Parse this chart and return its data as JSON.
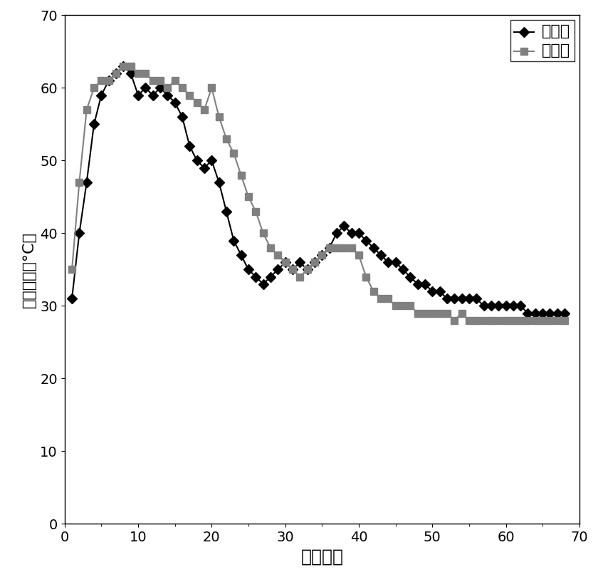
{
  "control_x": [
    1,
    2,
    3,
    4,
    5,
    6,
    7,
    8,
    9,
    10,
    11,
    12,
    13,
    14,
    15,
    16,
    17,
    18,
    19,
    20,
    21,
    22,
    23,
    24,
    25,
    26,
    27,
    28,
    29,
    30,
    31,
    32,
    33,
    34,
    35,
    36,
    37,
    38,
    39,
    40,
    41,
    42,
    43,
    44,
    45,
    46,
    47,
    48,
    49,
    50,
    51,
    52,
    53,
    54,
    55,
    56,
    57,
    58,
    59,
    60,
    61,
    62,
    63,
    64,
    65,
    66,
    67,
    68
  ],
  "control_y": [
    31,
    40,
    47,
    55,
    59,
    61,
    62,
    63,
    62,
    59,
    60,
    59,
    60,
    59,
    58,
    56,
    52,
    50,
    49,
    50,
    47,
    43,
    39,
    37,
    35,
    34,
    33,
    34,
    35,
    36,
    35,
    36,
    35,
    36,
    37,
    38,
    40,
    41,
    40,
    40,
    39,
    38,
    37,
    36,
    36,
    35,
    34,
    33,
    33,
    32,
    32,
    31,
    31,
    31,
    31,
    31,
    30,
    30,
    30,
    30,
    30,
    30,
    29,
    29,
    29,
    29,
    29,
    29
  ],
  "bacteria_x": [
    1,
    2,
    3,
    4,
    5,
    6,
    7,
    8,
    9,
    10,
    11,
    12,
    13,
    14,
    15,
    16,
    17,
    18,
    19,
    20,
    21,
    22,
    23,
    24,
    25,
    26,
    27,
    28,
    29,
    30,
    31,
    32,
    33,
    34,
    35,
    36,
    37,
    38,
    39,
    40,
    41,
    42,
    43,
    44,
    45,
    46,
    47,
    48,
    49,
    50,
    51,
    52,
    53,
    54,
    55,
    56,
    57,
    58,
    59,
    60,
    61,
    62,
    63,
    64,
    65,
    66,
    67,
    68
  ],
  "bacteria_y": [
    35,
    47,
    57,
    60,
    61,
    61,
    62,
    63,
    63,
    62,
    62,
    61,
    61,
    60,
    61,
    60,
    59,
    58,
    57,
    60,
    56,
    53,
    51,
    48,
    45,
    43,
    40,
    38,
    37,
    36,
    35,
    34,
    35,
    36,
    37,
    38,
    38,
    38,
    38,
    37,
    34,
    32,
    31,
    31,
    30,
    30,
    30,
    29,
    29,
    29,
    29,
    29,
    28,
    29,
    28,
    28,
    28,
    28,
    28,
    28,
    28,
    28,
    28,
    28,
    28,
    28,
    28,
    28
  ],
  "xlabel": "发酵天数",
  "ylabel": "堆体温度（°C）",
  "xlim": [
    0,
    70
  ],
  "ylim": [
    0,
    70
  ],
  "xticks": [
    0,
    10,
    20,
    30,
    40,
    50,
    60,
    70
  ],
  "yticks": [
    0,
    10,
    20,
    30,
    40,
    50,
    60,
    70
  ],
  "legend_control": "对照组",
  "legend_bacteria": "菌剂组",
  "control_color": "#000000",
  "bacteria_color": "#808080",
  "line_width": 1.5,
  "marker_size": 7,
  "xlabel_fontsize": 18,
  "ylabel_fontsize": 16,
  "tick_fontsize": 14,
  "legend_fontsize": 16
}
